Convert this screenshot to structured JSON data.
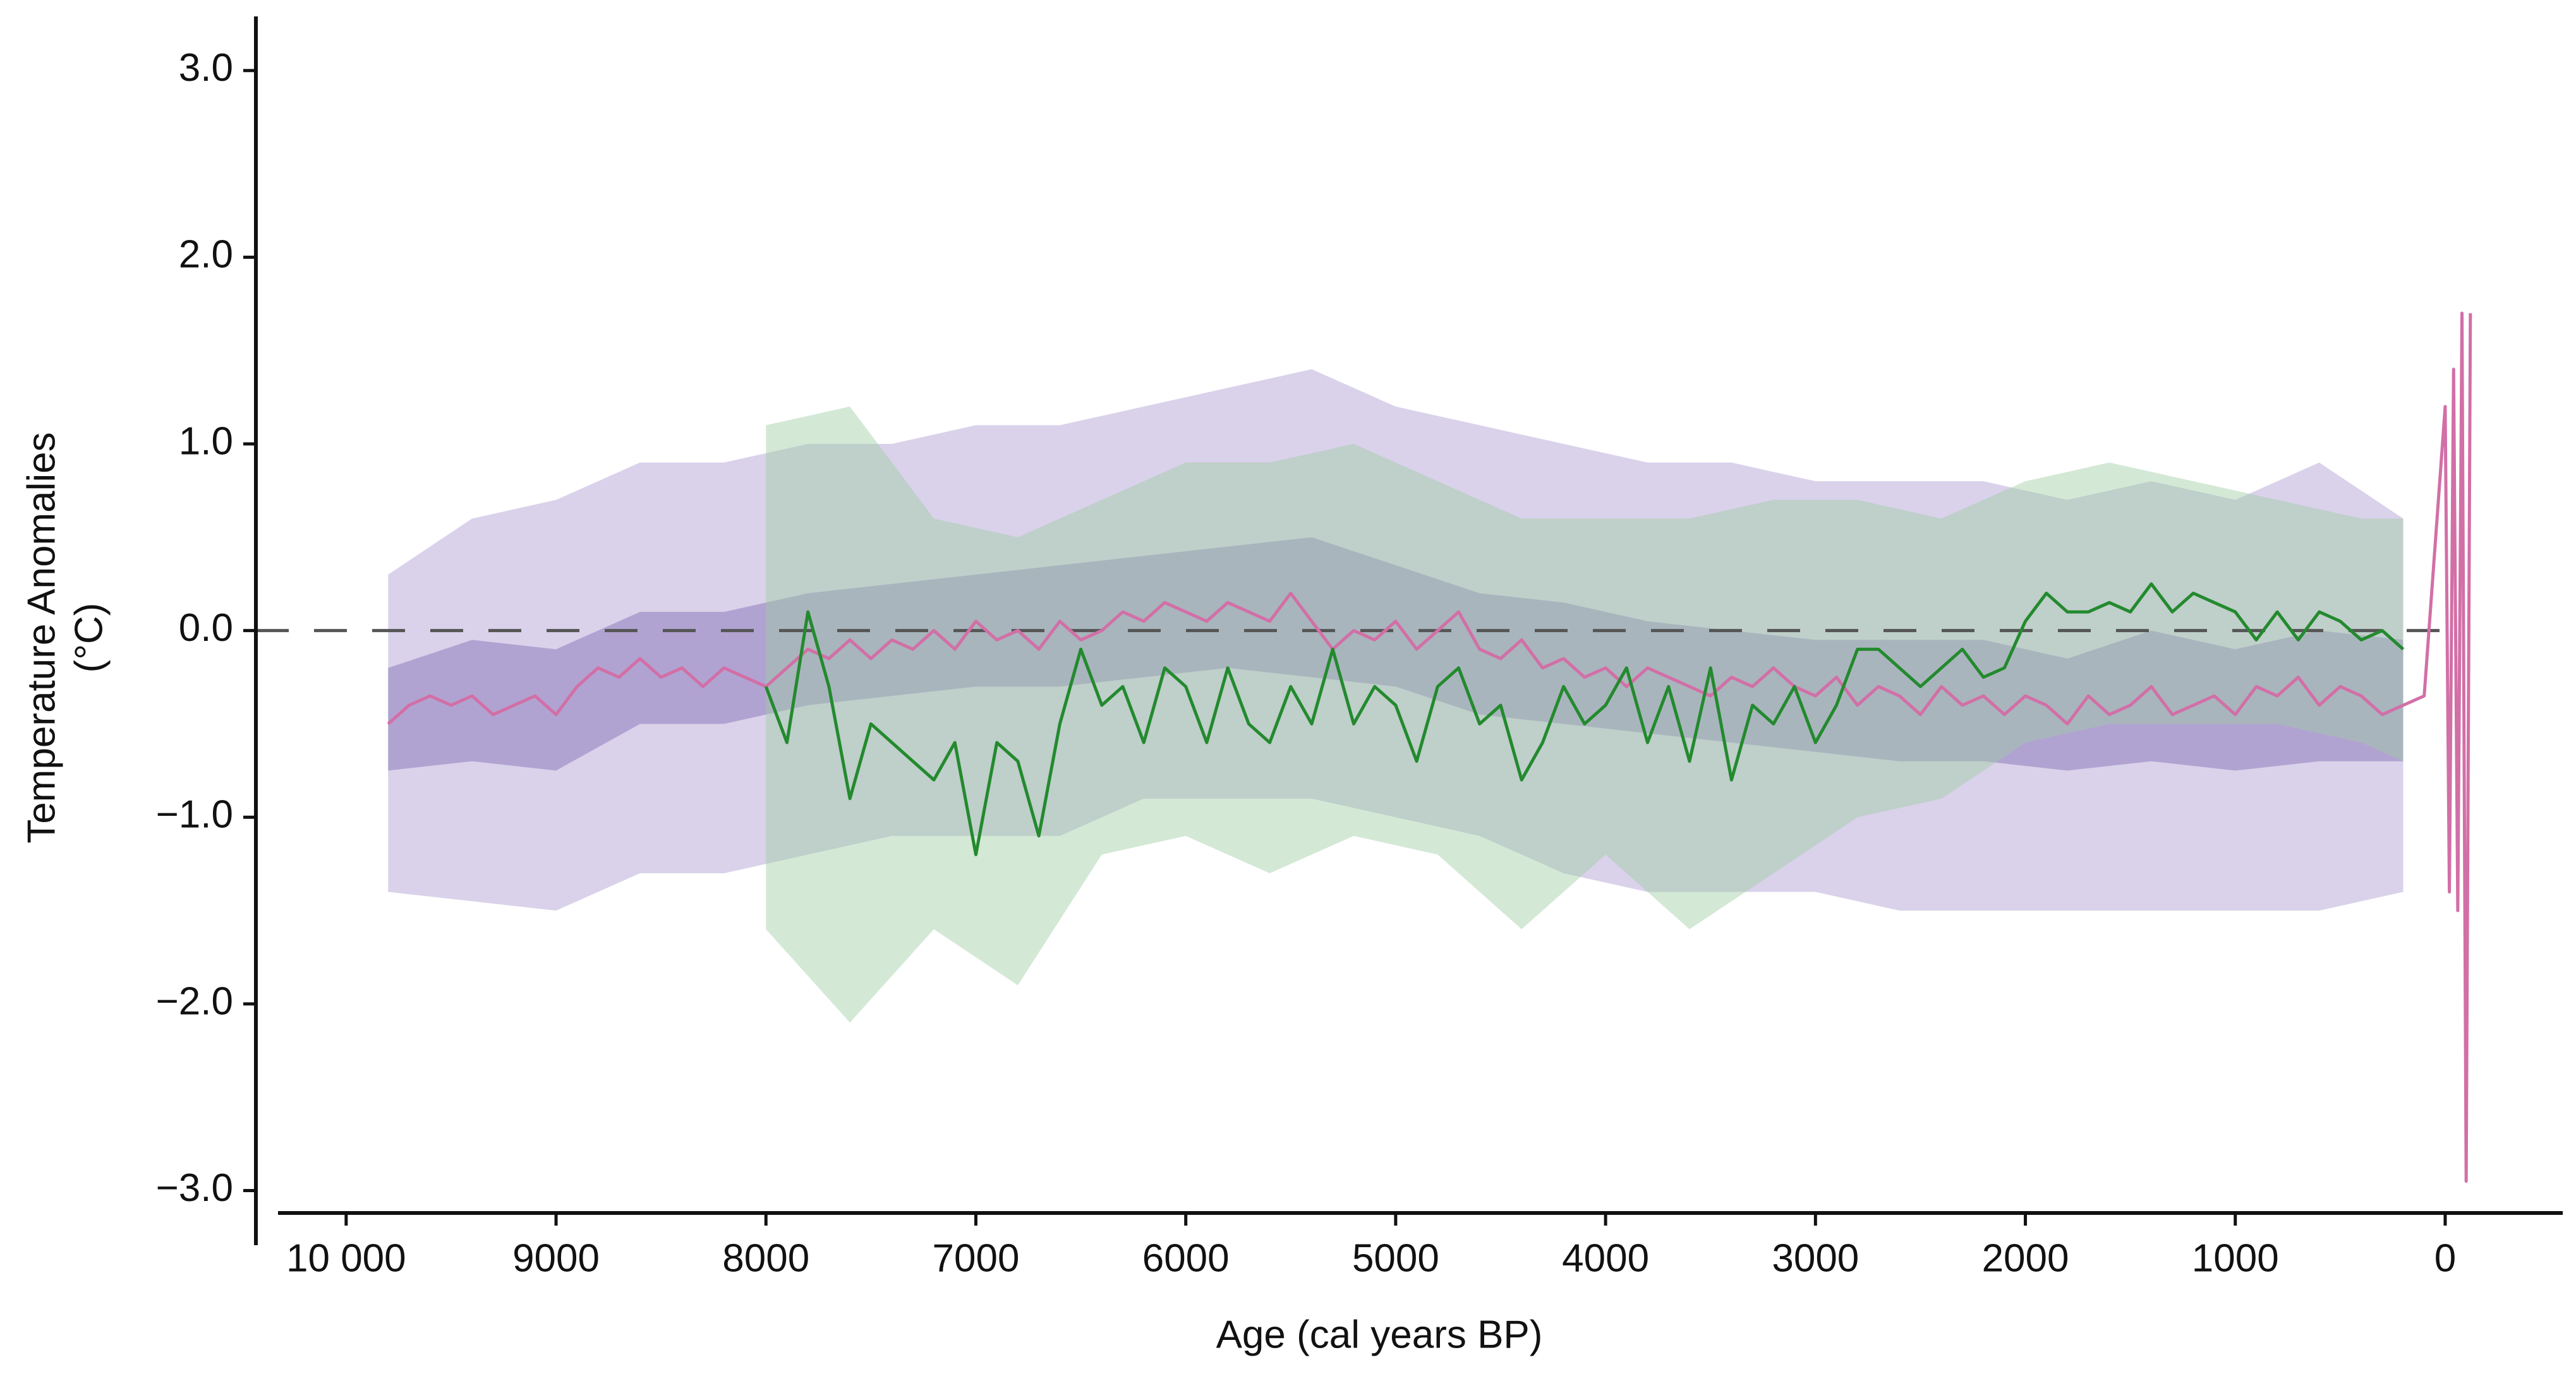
{
  "chart_data": {
    "type": "line",
    "y_label": [
      "Temperature Anomalies",
      "(°C)"
    ],
    "x_label": "Age (cal years BP)",
    "xlim": [
      10430,
      -560
    ],
    "ylim": [
      -3.12,
      3.29
    ],
    "xticks": [
      {
        "value": 10000,
        "label": "10 000"
      },
      9000,
      8000,
      7000,
      6000,
      5000,
      4000,
      3000,
      2000,
      1000,
      0
    ],
    "yticks": [
      {
        "value": 3,
        "label": "3.0"
      },
      {
        "value": 2,
        "label": "2.0"
      },
      {
        "value": 1,
        "label": "1.0"
      },
      {
        "value": 0,
        "label": "0.0"
      },
      {
        "value": -1,
        "label": "−1.0"
      },
      {
        "value": -2,
        "label": "−2.0"
      },
      {
        "value": -3,
        "label": "−3.0"
      }
    ],
    "reference_line": {
      "y": 0,
      "x": [
        10430,
        0
      ],
      "color": "#555555"
    },
    "bands": [
      {
        "color": "#d9d2ea",
        "opacity": 1,
        "x": [
          9800,
          9400,
          9000,
          8600,
          8200,
          7800,
          7400,
          7000,
          6600,
          6200,
          5800,
          5400,
          5000,
          4600,
          4200,
          3800,
          3400,
          3000,
          2600,
          2200,
          1800,
          1400,
          1000,
          600,
          200
        ],
        "lower": [
          -1.4,
          -1.45,
          -1.5,
          -1.3,
          -1.3,
          -1.2,
          -1.1,
          -1.1,
          -1.1,
          -0.9,
          -0.9,
          -0.9,
          -1.0,
          -1.1,
          -1.3,
          -1.4,
          -1.4,
          -1.4,
          -1.5,
          -1.5,
          -1.5,
          -1.5,
          -1.5,
          -1.5,
          -1.4
        ],
        "upper": [
          0.3,
          0.6,
          0.7,
          0.9,
          0.9,
          1.0,
          1.0,
          1.1,
          1.1,
          1.2,
          1.3,
          1.4,
          1.2,
          1.1,
          1.0,
          0.9,
          0.9,
          0.8,
          0.8,
          0.8,
          0.7,
          0.8,
          0.7,
          0.9,
          0.6
        ]
      },
      {
        "color": "#a99bcc",
        "opacity": 0.85,
        "x": [
          9800,
          9400,
          9000,
          8600,
          8200,
          7800,
          7400,
          7000,
          6600,
          6200,
          5800,
          5400,
          5000,
          4600,
          4200,
          3800,
          3400,
          3000,
          2600,
          2200,
          1800,
          1400,
          1000,
          600,
          200
        ],
        "lower": [
          -0.75,
          -0.7,
          -0.75,
          -0.5,
          -0.5,
          -0.4,
          -0.35,
          -0.3,
          -0.3,
          -0.25,
          -0.2,
          -0.25,
          -0.3,
          -0.45,
          -0.5,
          -0.55,
          -0.6,
          -0.65,
          -0.7,
          -0.7,
          -0.75,
          -0.7,
          -0.75,
          -0.7,
          -0.7
        ],
        "upper": [
          -0.2,
          -0.05,
          -0.1,
          0.1,
          0.1,
          0.2,
          0.25,
          0.3,
          0.35,
          0.4,
          0.45,
          0.5,
          0.35,
          0.2,
          0.15,
          0.05,
          0.0,
          -0.05,
          -0.05,
          -0.05,
          -0.15,
          0.0,
          -0.1,
          0.0,
          -0.05
        ]
      },
      {
        "color": "#9fcca5",
        "opacity": 0.45,
        "x": [
          8000,
          7600,
          7200,
          6800,
          6400,
          6000,
          5600,
          5200,
          4800,
          4400,
          4000,
          3600,
          3200,
          2800,
          2400,
          2000,
          1600,
          1200,
          800,
          400,
          200
        ],
        "lower": [
          -1.6,
          -2.1,
          -1.6,
          -1.9,
          -1.2,
          -1.1,
          -1.3,
          -1.1,
          -1.2,
          -1.6,
          -1.2,
          -1.6,
          -1.3,
          -1.0,
          -0.9,
          -0.6,
          -0.5,
          -0.5,
          -0.5,
          -0.6,
          -0.7
        ],
        "upper": [
          1.1,
          1.2,
          0.6,
          0.5,
          0.7,
          0.9,
          0.9,
          1.0,
          0.8,
          0.6,
          0.6,
          0.6,
          0.7,
          0.7,
          0.6,
          0.8,
          0.9,
          0.8,
          0.7,
          0.6,
          0.6
        ]
      }
    ],
    "series": [
      {
        "color": "#d26fa6",
        "x": [
          9800,
          9700,
          9600,
          9500,
          9400,
          9300,
          9200,
          9100,
          9000,
          8900,
          8800,
          8700,
          8600,
          8500,
          8400,
          8300,
          8200,
          8100,
          8000,
          7900,
          7800,
          7700,
          7600,
          7500,
          7400,
          7300,
          7200,
          7100,
          7000,
          6900,
          6800,
          6700,
          6600,
          6500,
          6400,
          6300,
          6200,
          6100,
          6000,
          5900,
          5800,
          5700,
          5600,
          5500,
          5400,
          5300,
          5200,
          5100,
          5000,
          4900,
          4800,
          4700,
          4600,
          4500,
          4400,
          4300,
          4200,
          4100,
          4000,
          3900,
          3800,
          3700,
          3600,
          3500,
          3400,
          3300,
          3200,
          3100,
          3000,
          2900,
          2800,
          2700,
          2600,
          2500,
          2400,
          2300,
          2200,
          2100,
          2000,
          1900,
          1800,
          1700,
          1600,
          1500,
          1400,
          1300,
          1200,
          1100,
          1000,
          900,
          800,
          700,
          600,
          500,
          400,
          300,
          200,
          100,
          0,
          -20,
          -40,
          -60,
          -80,
          -100,
          -120
        ],
        "values": [
          -0.5,
          -0.4,
          -0.35,
          -0.4,
          -0.35,
          -0.45,
          -0.4,
          -0.35,
          -0.45,
          -0.3,
          -0.2,
          -0.25,
          -0.15,
          -0.25,
          -0.2,
          -0.3,
          -0.2,
          -0.25,
          -0.3,
          -0.2,
          -0.1,
          -0.15,
          -0.05,
          -0.15,
          -0.05,
          -0.1,
          0.0,
          -0.1,
          0.05,
          -0.05,
          0.0,
          -0.1,
          0.05,
          -0.05,
          0.0,
          0.1,
          0.05,
          0.15,
          0.1,
          0.05,
          0.15,
          0.1,
          0.05,
          0.2,
          0.05,
          -0.1,
          0.0,
          -0.05,
          0.05,
          -0.1,
          0.0,
          0.1,
          -0.1,
          -0.15,
          -0.05,
          -0.2,
          -0.15,
          -0.25,
          -0.2,
          -0.3,
          -0.2,
          -0.25,
          -0.3,
          -0.35,
          -0.25,
          -0.3,
          -0.2,
          -0.3,
          -0.35,
          -0.25,
          -0.4,
          -0.3,
          -0.35,
          -0.45,
          -0.3,
          -0.4,
          -0.35,
          -0.45,
          -0.35,
          -0.4,
          -0.5,
          -0.35,
          -0.45,
          -0.4,
          -0.3,
          -0.45,
          -0.4,
          -0.35,
          -0.45,
          -0.3,
          -0.35,
          -0.25,
          -0.4,
          -0.3,
          -0.35,
          -0.45,
          -0.4,
          -0.35,
          1.2,
          -1.4,
          1.4,
          -1.5,
          1.7,
          -2.95,
          1.7
        ]
      },
      {
        "color": "#238a2e",
        "x": [
          8000,
          7900,
          7800,
          7700,
          7600,
          7500,
          7400,
          7300,
          7200,
          7100,
          7000,
          6900,
          6800,
          6700,
          6600,
          6500,
          6400,
          6300,
          6200,
          6100,
          6000,
          5900,
          5800,
          5700,
          5600,
          5500,
          5400,
          5300,
          5200,
          5100,
          5000,
          4900,
          4800,
          4700,
          4600,
          4500,
          4400,
          4300,
          4200,
          4100,
          4000,
          3900,
          3800,
          3700,
          3600,
          3500,
          3400,
          3300,
          3200,
          3100,
          3000,
          2900,
          2800,
          2700,
          2600,
          2500,
          2400,
          2300,
          2200,
          2100,
          2000,
          1900,
          1800,
          1700,
          1600,
          1500,
          1400,
          1300,
          1200,
          1100,
          1000,
          900,
          800,
          700,
          600,
          500,
          400,
          300,
          200
        ],
        "values": [
          -0.3,
          -0.6,
          0.1,
          -0.3,
          -0.9,
          -0.5,
          -0.6,
          -0.7,
          -0.8,
          -0.6,
          -1.2,
          -0.6,
          -0.7,
          -1.1,
          -0.5,
          -0.1,
          -0.4,
          -0.3,
          -0.6,
          -0.2,
          -0.3,
          -0.6,
          -0.2,
          -0.5,
          -0.6,
          -0.3,
          -0.5,
          -0.1,
          -0.5,
          -0.3,
          -0.4,
          -0.7,
          -0.3,
          -0.2,
          -0.5,
          -0.4,
          -0.8,
          -0.6,
          -0.3,
          -0.5,
          -0.4,
          -0.2,
          -0.6,
          -0.3,
          -0.7,
          -0.2,
          -0.8,
          -0.4,
          -0.5,
          -0.3,
          -0.6,
          -0.4,
          -0.1,
          -0.1,
          -0.2,
          -0.3,
          -0.2,
          -0.1,
          -0.25,
          -0.2,
          0.05,
          0.2,
          0.1,
          0.1,
          0.15,
          0.1,
          0.25,
          0.1,
          0.2,
          0.15,
          0.1,
          -0.05,
          0.1,
          -0.05,
          0.1,
          0.05,
          -0.05,
          0.0,
          -0.1
        ]
      }
    ]
  }
}
